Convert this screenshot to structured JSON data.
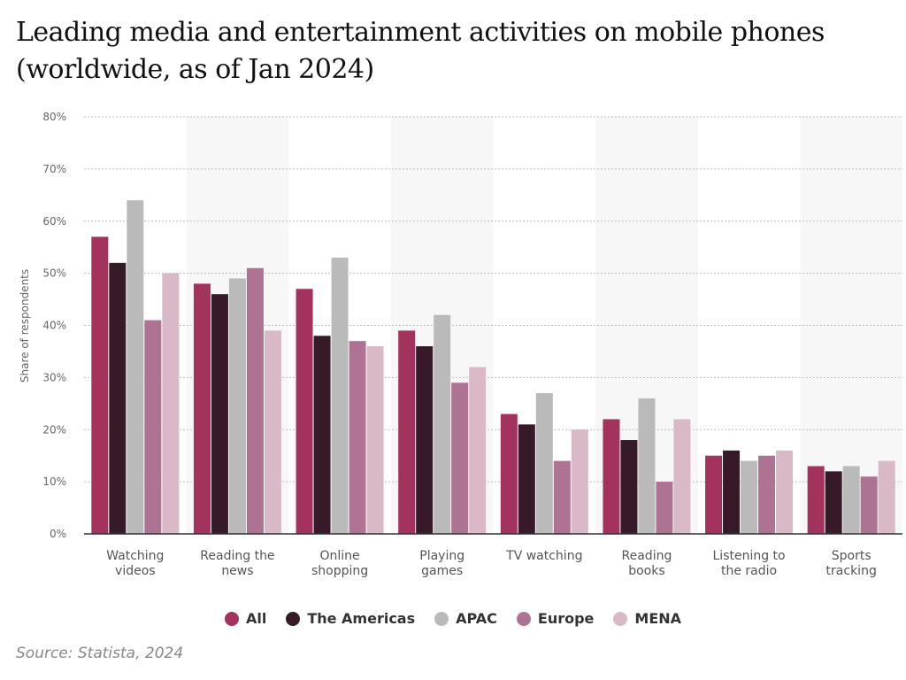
{
  "title": "Leading media and entertainment activities on mobile phones (worldwide, as of Jan 2024)",
  "source": "Source: Statista, 2024",
  "chart_data": {
    "type": "bar",
    "ylabel": "Share of respondents",
    "ylim": [
      0,
      80
    ],
    "yticks": [
      "0%",
      "10%",
      "20%",
      "30%",
      "40%",
      "50%",
      "60%",
      "70%",
      "80%"
    ],
    "grid": true,
    "legend_position": "bottom",
    "categories": [
      [
        "Watching",
        "videos"
      ],
      [
        "Reading the",
        "news"
      ],
      [
        "Online",
        "shopping"
      ],
      [
        "Playing",
        "games"
      ],
      [
        "TV watching"
      ],
      [
        "Reading",
        "books"
      ],
      [
        "Listening to",
        "the radio"
      ],
      [
        "Sports",
        "tracking"
      ]
    ],
    "series": [
      {
        "name": "All",
        "color": "#a3325f",
        "values": [
          57,
          48,
          47,
          39,
          23,
          22,
          15,
          13
        ]
      },
      {
        "name": "The Americas",
        "color": "#361a2a",
        "values": [
          52,
          46,
          38,
          36,
          21,
          18,
          16,
          12
        ]
      },
      {
        "name": "APAC",
        "color": "#bababa",
        "values": [
          64,
          49,
          53,
          42,
          27,
          26,
          14,
          13
        ]
      },
      {
        "name": "Europe",
        "color": "#ae7392",
        "values": [
          41,
          51,
          37,
          29,
          14,
          10,
          15,
          11
        ]
      },
      {
        "name": "MENA",
        "color": "#d9b9c8",
        "values": [
          50,
          39,
          36,
          32,
          20,
          22,
          16,
          14
        ]
      }
    ]
  }
}
